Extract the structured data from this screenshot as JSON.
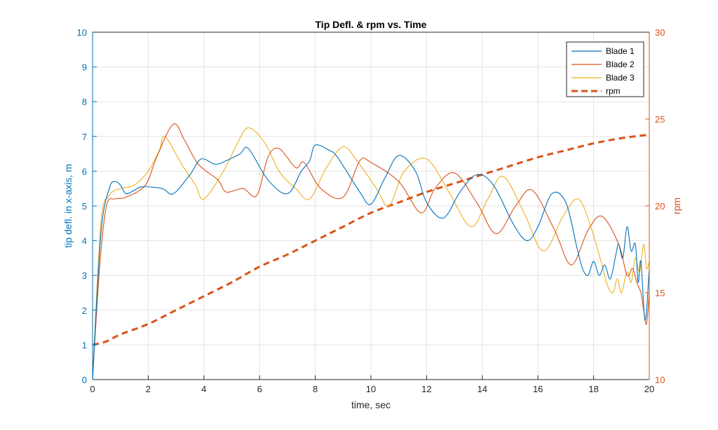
{
  "chart_data": {
    "type": "line",
    "title": "Tip Defl. & rpm vs. Time",
    "xlabel": "time, sec",
    "ylabel": "tip defl. in x-axis, m",
    "ylabel_right": "rpm",
    "xlim": [
      0,
      20
    ],
    "ylim": [
      0,
      10
    ],
    "ylim_right": [
      10,
      30
    ],
    "xticks": [
      "0",
      "2",
      "4",
      "6",
      "8",
      "10",
      "12",
      "14",
      "16",
      "18",
      "20"
    ],
    "yticks": [
      "0",
      "1",
      "2",
      "3",
      "4",
      "5",
      "6",
      "7",
      "8",
      "9",
      "10"
    ],
    "yticks_right": [
      "10",
      "15",
      "20",
      "25",
      "30"
    ],
    "grid": true,
    "legend_position": "top-right",
    "colors": {
      "left_axis": "#0072BD",
      "right_axis": "#D95319"
    },
    "series": [
      {
        "name": "Blade 1",
        "axis": "left",
        "color": "#0072BD",
        "style": "solid",
        "points": [
          [
            0,
            0
          ],
          [
            0.3,
            4.2
          ],
          [
            0.6,
            5.5
          ],
          [
            0.8,
            5.7
          ],
          [
            1.0,
            5.6
          ],
          [
            1.2,
            5.35
          ],
          [
            1.5,
            5.45
          ],
          [
            1.8,
            5.55
          ],
          [
            2.5,
            5.5
          ],
          [
            2.9,
            5.35
          ],
          [
            3.5,
            5.9
          ],
          [
            3.9,
            6.35
          ],
          [
            4.4,
            6.2
          ],
          [
            4.8,
            6.3
          ],
          [
            5.3,
            6.5
          ],
          [
            5.6,
            6.65
          ],
          [
            6.3,
            5.75
          ],
          [
            7.0,
            5.35
          ],
          [
            7.5,
            6.0
          ],
          [
            7.8,
            6.3
          ],
          [
            8.0,
            6.75
          ],
          [
            8.5,
            6.6
          ],
          [
            8.8,
            6.4
          ],
          [
            9.6,
            5.4
          ],
          [
            10.0,
            5.05
          ],
          [
            10.5,
            5.8
          ],
          [
            11.0,
            6.45
          ],
          [
            11.6,
            6.0
          ],
          [
            12.0,
            5.1
          ],
          [
            12.6,
            4.65
          ],
          [
            13.2,
            5.4
          ],
          [
            13.8,
            5.9
          ],
          [
            14.4,
            5.6
          ],
          [
            15.1,
            4.5
          ],
          [
            15.6,
            4.0
          ],
          [
            16.0,
            4.4
          ],
          [
            16.5,
            5.35
          ],
          [
            17.0,
            5.1
          ],
          [
            17.4,
            3.8
          ],
          [
            17.6,
            3.2
          ],
          [
            17.8,
            3.0
          ],
          [
            18.0,
            3.4
          ],
          [
            18.2,
            3.0
          ],
          [
            18.4,
            3.3
          ],
          [
            18.6,
            2.9
          ],
          [
            18.8,
            3.6
          ],
          [
            18.9,
            3.9
          ],
          [
            19.05,
            3.5
          ],
          [
            19.2,
            4.4
          ],
          [
            19.35,
            3.7
          ],
          [
            19.5,
            3.9
          ],
          [
            19.6,
            2.8
          ],
          [
            19.7,
            3.4
          ],
          [
            19.85,
            1.7
          ],
          [
            20,
            3.2
          ]
        ]
      },
      {
        "name": "Blade 2",
        "axis": "left",
        "color": "#D95319",
        "style": "solid",
        "points": [
          [
            0,
            0
          ],
          [
            0.25,
            3.2
          ],
          [
            0.5,
            5.0
          ],
          [
            0.8,
            5.2
          ],
          [
            1.2,
            5.25
          ],
          [
            1.9,
            5.6
          ],
          [
            2.3,
            6.4
          ],
          [
            2.9,
            7.35
          ],
          [
            3.3,
            6.9
          ],
          [
            3.8,
            6.2
          ],
          [
            4.5,
            5.75
          ],
          [
            4.8,
            5.4
          ],
          [
            5.4,
            5.5
          ],
          [
            5.9,
            5.3
          ],
          [
            6.3,
            6.4
          ],
          [
            6.7,
            6.65
          ],
          [
            7.3,
            6.1
          ],
          [
            7.6,
            6.25
          ],
          [
            8.2,
            5.5
          ],
          [
            9.0,
            5.25
          ],
          [
            9.6,
            6.3
          ],
          [
            10.0,
            6.25
          ],
          [
            11.0,
            5.7
          ],
          [
            11.8,
            4.8
          ],
          [
            12.3,
            5.5
          ],
          [
            13.0,
            5.95
          ],
          [
            13.8,
            5.1
          ],
          [
            14.5,
            4.2
          ],
          [
            15.2,
            5.0
          ],
          [
            15.8,
            5.45
          ],
          [
            16.6,
            4.3
          ],
          [
            17.2,
            3.3
          ],
          [
            17.8,
            4.3
          ],
          [
            18.3,
            4.7
          ],
          [
            18.9,
            3.9
          ],
          [
            19.2,
            3.0
          ],
          [
            19.4,
            3.2
          ],
          [
            19.55,
            2.8
          ],
          [
            19.7,
            2.5
          ],
          [
            19.8,
            2.0
          ],
          [
            19.9,
            1.6
          ],
          [
            20,
            2.5
          ]
        ]
      },
      {
        "name": "Blade 3",
        "axis": "left",
        "color": "#EDB120",
        "style": "solid",
        "points": [
          [
            0,
            0
          ],
          [
            0.3,
            4.5
          ],
          [
            0.6,
            5.3
          ],
          [
            1.0,
            5.5
          ],
          [
            1.5,
            5.6
          ],
          [
            2.0,
            6.0
          ],
          [
            2.4,
            6.6
          ],
          [
            2.6,
            7.0
          ],
          [
            3.2,
            6.2
          ],
          [
            3.7,
            5.6
          ],
          [
            4.0,
            5.2
          ],
          [
            4.7,
            6.0
          ],
          [
            5.2,
            6.8
          ],
          [
            5.6,
            7.25
          ],
          [
            6.2,
            6.8
          ],
          [
            6.7,
            6.0
          ],
          [
            7.3,
            5.5
          ],
          [
            7.8,
            5.2
          ],
          [
            8.4,
            6.1
          ],
          [
            9.0,
            6.7
          ],
          [
            9.5,
            6.3
          ],
          [
            10.2,
            5.5
          ],
          [
            10.65,
            5.0
          ],
          [
            11.2,
            6.0
          ],
          [
            12.0,
            6.35
          ],
          [
            12.8,
            5.4
          ],
          [
            13.6,
            4.4
          ],
          [
            14.2,
            5.2
          ],
          [
            14.75,
            5.85
          ],
          [
            15.5,
            4.8
          ],
          [
            16.2,
            3.7
          ],
          [
            16.9,
            4.7
          ],
          [
            17.45,
            5.2
          ],
          [
            17.9,
            4.4
          ],
          [
            18.3,
            3.3
          ],
          [
            18.5,
            2.7
          ],
          [
            18.7,
            2.5
          ],
          [
            18.85,
            2.9
          ],
          [
            19.0,
            2.5
          ],
          [
            19.2,
            3.1
          ],
          [
            19.35,
            2.8
          ],
          [
            19.5,
            3.5
          ],
          [
            19.65,
            3.1
          ],
          [
            19.8,
            3.9
          ],
          [
            19.9,
            3.2
          ],
          [
            20,
            3.4
          ]
        ]
      },
      {
        "name": "rpm",
        "axis": "right",
        "color": "#D95319",
        "style": "dashed",
        "points": [
          [
            0,
            12
          ],
          [
            0.5,
            12.2
          ],
          [
            1,
            12.6
          ],
          [
            2,
            13.2
          ],
          [
            3,
            14.0
          ],
          [
            4,
            14.8
          ],
          [
            5,
            15.6
          ],
          [
            6,
            16.5
          ],
          [
            7,
            17.2
          ],
          [
            8,
            18.0
          ],
          [
            9,
            18.8
          ],
          [
            10,
            19.6
          ],
          [
            11,
            20.2
          ],
          [
            12,
            20.8
          ],
          [
            13,
            21.3
          ],
          [
            14,
            21.8
          ],
          [
            15,
            22.3
          ],
          [
            16,
            22.8
          ],
          [
            17,
            23.2
          ],
          [
            18,
            23.6
          ],
          [
            19,
            23.9
          ],
          [
            20,
            24.1
          ]
        ]
      }
    ]
  }
}
